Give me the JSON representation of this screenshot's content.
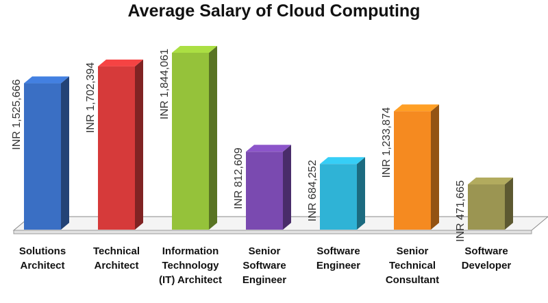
{
  "chart_data": {
    "type": "bar",
    "title": "Average Salary of Cloud Computing",
    "categories": [
      "Solutions Architect",
      "Technical Architect",
      "Information Technology (IT) Architect",
      "Senior Software Engineer",
      "Software Engineer",
      "Senior Technical Consultant",
      "Software Developer"
    ],
    "values": [
      1525666,
      1702394,
      1844061,
      812609,
      684252,
      1233874,
      471665
    ],
    "value_labels": [
      "INR 1,525,666",
      "INR 1,702,394",
      "INR 1,844,061",
      "INR 812,609",
      "INR 684,252",
      "INR 1,233,874",
      "INR 471,665"
    ],
    "colors": [
      "#3a6fc4",
      "#d63a3a",
      "#95c23a",
      "#7a4ab0",
      "#2fb3d6",
      "#f58a20",
      "#9b9552"
    ]
  }
}
